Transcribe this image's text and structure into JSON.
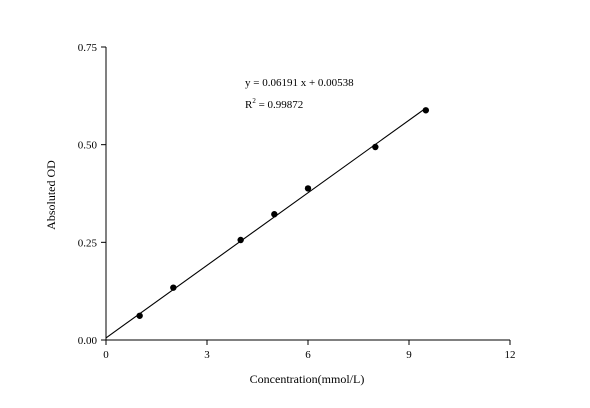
{
  "chart_data": {
    "type": "scatter",
    "title": "",
    "xlabel": "Concentration(mmol/L)",
    "ylabel": "Absoluted OD",
    "xlim": [
      0,
      12
    ],
    "ylim": [
      0,
      0.75
    ],
    "x_ticks": [
      0,
      3,
      6,
      9,
      12
    ],
    "x_tick_labels": [
      "0",
      "3",
      "6",
      "9",
      "12"
    ],
    "y_ticks": [
      0,
      0.25,
      0.5,
      0.75
    ],
    "y_tick_labels": [
      "0.00",
      "0.25",
      "0.50",
      "0.75"
    ],
    "grid": false,
    "legend": "none",
    "points": [
      {
        "x": 1.0,
        "y": 0.062
      },
      {
        "x": 2.0,
        "y": 0.134
      },
      {
        "x": 4.0,
        "y": 0.256
      },
      {
        "x": 5.0,
        "y": 0.322
      },
      {
        "x": 6.0,
        "y": 0.388
      },
      {
        "x": 8.0,
        "y": 0.494
      },
      {
        "x": 9.5,
        "y": 0.588
      }
    ],
    "fit": {
      "slope": 0.06191,
      "intercept": 0.00538,
      "x_range": [
        0,
        9.5
      ]
    },
    "annotations": {
      "equation": "y = 0.06191 x + 0.00538",
      "r_squared_prefix": "R",
      "r_squared_sup": "2",
      "r_squared_value": " = 0.99872"
    },
    "colors": {
      "axis": "#000000",
      "points": "#000000",
      "line": "#000000"
    }
  }
}
